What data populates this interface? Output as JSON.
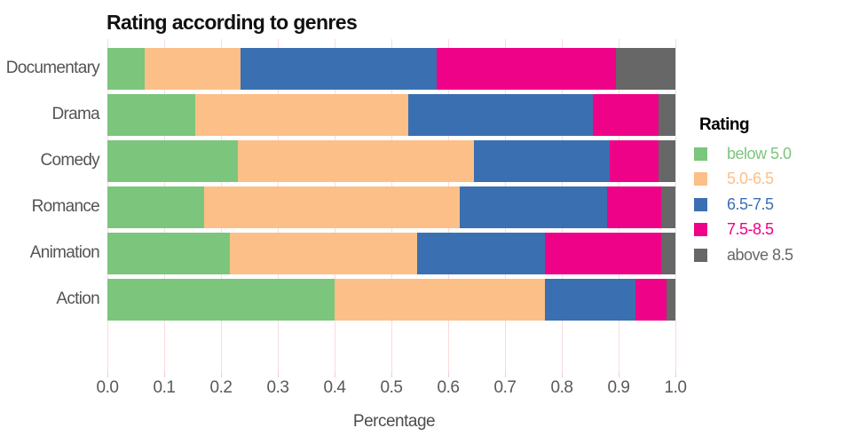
{
  "title": "Rating according to genres",
  "xaxis": {
    "label": "Percentage",
    "tick_labels": [
      "0.0",
      "0.1",
      "0.2",
      "0.3",
      "0.4",
      "0.5",
      "0.6",
      "0.7",
      "0.8",
      "0.9",
      "1.0"
    ]
  },
  "legend": {
    "title": "Rating",
    "items": [
      {
        "label": "below 5.0",
        "color": "#7cc57c"
      },
      {
        "label": "5.0-6.5",
        "color": "#fcbf87"
      },
      {
        "label": "6.5-7.5",
        "color": "#3a70b2"
      },
      {
        "label": "7.5-8.5",
        "color": "#ee0287"
      },
      {
        "label": "above 8.5",
        "color": "#676767"
      }
    ]
  },
  "chart_data": {
    "type": "bar",
    "orientation": "horizontal",
    "stacked": true,
    "title": "Rating according to genres",
    "xlabel": "Percentage",
    "ylabel": "",
    "xlim": [
      0.0,
      1.0
    ],
    "grid": true,
    "legend_position": "right",
    "categories": [
      "Documentary",
      "Drama",
      "Comedy",
      "Romance",
      "Animation",
      "Action"
    ],
    "series": [
      {
        "name": "below 5.0",
        "color": "#7cc57c",
        "values": [
          0.065,
          0.155,
          0.23,
          0.17,
          0.215,
          0.4
        ]
      },
      {
        "name": "5.0-6.5",
        "color": "#fcbf87",
        "values": [
          0.17,
          0.375,
          0.415,
          0.45,
          0.33,
          0.37
        ]
      },
      {
        "name": "6.5-7.5",
        "color": "#3a70b2",
        "values": [
          0.345,
          0.325,
          0.24,
          0.26,
          0.225,
          0.16
        ]
      },
      {
        "name": "7.5-8.5",
        "color": "#ee0287",
        "values": [
          0.315,
          0.115,
          0.085,
          0.095,
          0.205,
          0.055
        ]
      },
      {
        "name": "above 8.5",
        "color": "#676767",
        "values": [
          0.105,
          0.03,
          0.03,
          0.025,
          0.025,
          0.015
        ]
      }
    ]
  },
  "style": {
    "gridline_color": "#fadbdc",
    "tick_color": "#f3c9cb",
    "label_color": "#545454",
    "title_color": "#111111"
  }
}
